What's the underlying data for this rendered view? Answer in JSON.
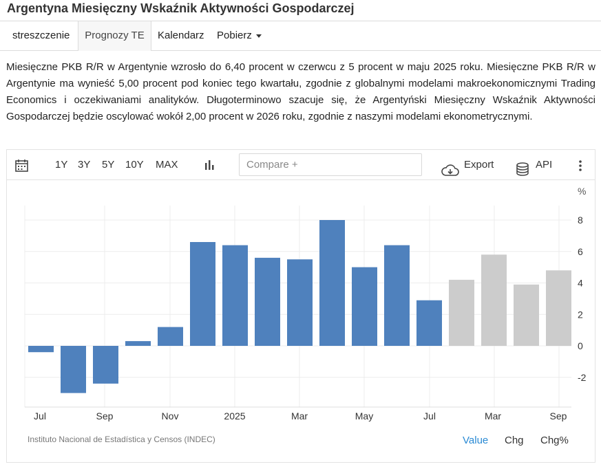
{
  "page": {
    "title": "Argentyna Miesięczny Wskaźnik Aktywności Gospodarczej"
  },
  "tabs": [
    {
      "label": "streszczenie"
    },
    {
      "label": "Prognozy TE"
    },
    {
      "label": "Kalendarz"
    },
    {
      "label": "Pobierz"
    }
  ],
  "description": "Miesięczne PKB R/R w Argentynie wzrosło do 6,40 procent w czerwcu z 5 procent w maju 2025 roku. Miesięczne PKB R/R w Argentynie ma wynieść 5,00 procent pod koniec tego kwartału, zgodnie z globalnymi modelami makroekonomicznymi Trading Economics i oczekiwaniami analityków. Długoterminowo szacuje się, że Argentyński Miesięczny Wskaźnik Aktywności Gospodarczej będzie oscylować wokół 2,00 procent w 2026 roku, zgodnie z naszymi modelami ekonometrycznymi.",
  "toolbar": {
    "ranges": [
      "1Y",
      "3Y",
      "5Y",
      "10Y",
      "MAX"
    ],
    "compare_placeholder": "Compare +",
    "export_label": "Export",
    "api_label": "API",
    "icons": [
      "calendar-icon",
      "bar-chart-icon",
      "cloud-download-icon",
      "database-icon",
      "more-vertical-icon"
    ]
  },
  "chart_data": {
    "type": "bar",
    "unit_label": "%",
    "ylim": [
      -3.5,
      9
    ],
    "yticks": [
      -2,
      0,
      2,
      4,
      6,
      8
    ],
    "grid": true,
    "x_tick_labels": [
      "Jul",
      "Sep",
      "Nov",
      "2025",
      "Mar",
      "May",
      "Jul",
      "Mar",
      "Sep"
    ],
    "colors": {
      "actual": "#4f81bd",
      "forecast": "#cccccc",
      "axis_text": "#333333"
    },
    "bars": [
      {
        "value": -0.4,
        "forecast": false
      },
      {
        "value": -3.0,
        "forecast": false
      },
      {
        "value": -2.4,
        "forecast": false
      },
      {
        "value": 0.3,
        "forecast": false
      },
      {
        "value": 1.2,
        "forecast": false
      },
      {
        "value": 6.6,
        "forecast": false
      },
      {
        "value": 6.4,
        "forecast": false
      },
      {
        "value": 5.6,
        "forecast": false
      },
      {
        "value": 5.5,
        "forecast": false
      },
      {
        "value": 8.0,
        "forecast": false
      },
      {
        "value": 5.0,
        "forecast": false
      },
      {
        "value": 6.4,
        "forecast": false
      },
      {
        "value": 2.9,
        "forecast": true,
        "color": "#4f81bd"
      },
      {
        "value": 4.2,
        "forecast": true
      },
      {
        "value": 5.8,
        "forecast": true
      },
      {
        "value": 3.9,
        "forecast": true
      },
      {
        "value": 4.8,
        "forecast": true
      }
    ]
  },
  "footer": {
    "source": "Instituto Nacional de Estadística y Censos (INDEC)",
    "links": [
      "Value",
      "Chg",
      "Chg%"
    ],
    "active_link_color": "#2a8ad4"
  }
}
